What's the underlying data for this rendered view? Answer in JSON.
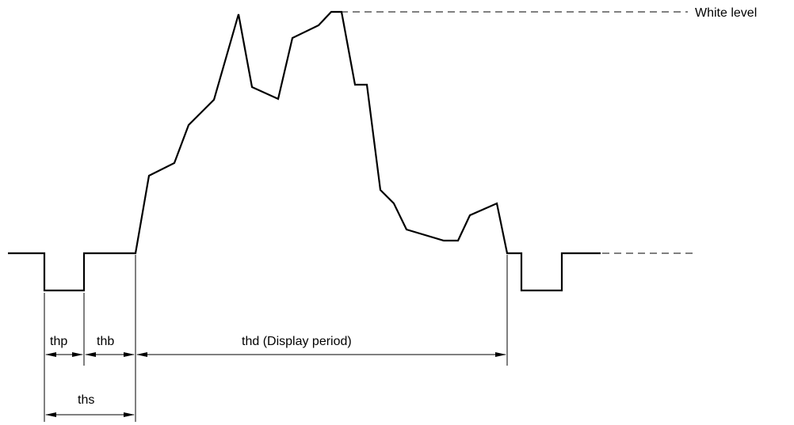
{
  "diagram": {
    "labels": {
      "white_level": "White level",
      "thp": "thp",
      "thb": "thb",
      "thd": "thd (Display period)",
      "ths": "ths"
    },
    "colors": {
      "signal": "#000000",
      "reference": "#000000",
      "background": "#ffffff"
    }
  }
}
